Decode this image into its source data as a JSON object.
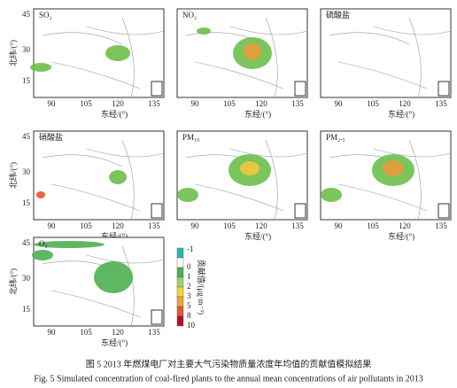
{
  "panels": [
    {
      "label": "SO₂"
    },
    {
      "label": "NO₂"
    },
    {
      "label": "硫酸盐"
    },
    {
      "label": "硝酸盐"
    },
    {
      "label": "PM₁₀"
    },
    {
      "label": "PM₂.₅"
    },
    {
      "label": "O₃"
    }
  ],
  "x_axis": {
    "label": "东经/(°)",
    "ticks": [
      "90",
      "105",
      "120",
      "135"
    ]
  },
  "y_axis": {
    "label": "北纬/(°)",
    "ticks": [
      "45",
      "30",
      "15"
    ]
  },
  "colorbar": {
    "label": "贡献值/(μg·m⁻³)",
    "ticks": [
      "-1",
      "0",
      "1",
      "2",
      "3",
      "5",
      "8",
      "10"
    ]
  },
  "caption": {
    "zh": "图 5   2013 年燃煤电厂对主要大气污染物质量浓度年均值的贡献值模拟结果",
    "en": "Fig. 5  Simulated concentration of coal-fired plants to the annual mean concentrations of air pollutants in 2013"
  }
}
